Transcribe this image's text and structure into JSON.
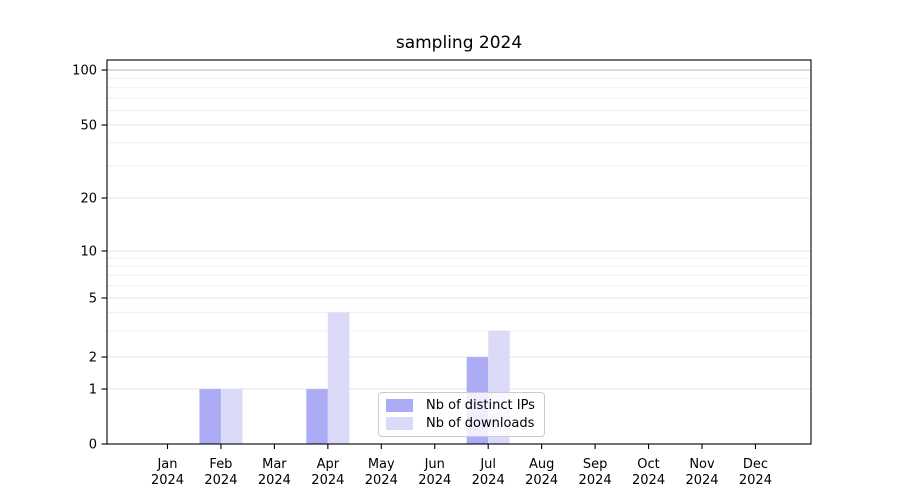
{
  "chart_data": {
    "type": "bar",
    "title": "sampling 2024",
    "categories": [
      "Jan",
      "Feb",
      "Mar",
      "Apr",
      "May",
      "Jun",
      "Jul",
      "Aug",
      "Sep",
      "Oct",
      "Nov",
      "Dec"
    ],
    "tick_year": "2024",
    "series": [
      {
        "name": "Nb of distinct IPs",
        "color": "#ababf6",
        "values": [
          0,
          1,
          0,
          1,
          0,
          0,
          2,
          0,
          0,
          0,
          0,
          0
        ]
      },
      {
        "name": "Nb of downloads",
        "color": "#dbdbf9",
        "values": [
          0,
          1,
          0,
          4,
          0,
          0,
          3,
          0,
          0,
          0,
          0,
          0
        ]
      }
    ],
    "y_axis": {
      "scale": "symlog",
      "tick_values": [
        100,
        50,
        20,
        10,
        5,
        2,
        1,
        0
      ],
      "tick_labels": [
        "100",
        "50",
        "20",
        "10",
        "5",
        "2",
        "1",
        "0"
      ],
      "ylim": [
        0,
        110
      ]
    },
    "x_axis": {
      "tick_label_lines": 2
    },
    "legend": {
      "position": "lower center"
    },
    "grid": true,
    "colors": {
      "grid_top": "#b5b5b5",
      "grid_major": "#e4e4e4",
      "grid_minor": "#efefef",
      "axis": "#000000"
    }
  }
}
